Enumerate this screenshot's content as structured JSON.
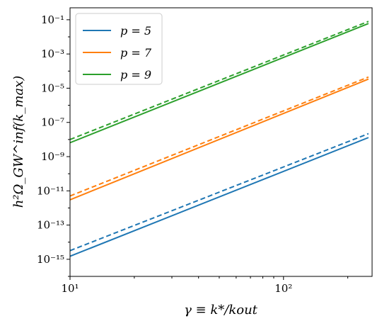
{
  "chart_data": {
    "type": "line",
    "xscale": "log",
    "yscale": "log",
    "xlim": [
      10,
      260
    ],
    "ylim": [
      1e-16,
      0.5
    ],
    "xlabel": "γ ≡ k*/kout",
    "ylabel": "h²Ω_GW^inf(k_max)",
    "x_ticks": [
      {
        "value": 10,
        "label": "10¹"
      },
      {
        "value": 100,
        "label": "10²"
      }
    ],
    "y_ticks": [
      {
        "value": 1e-15,
        "label": "10⁻¹⁵"
      },
      {
        "value": 1e-13,
        "label": "10⁻¹³"
      },
      {
        "value": 1e-11,
        "label": "10⁻¹¹"
      },
      {
        "value": 1e-09,
        "label": "10⁻⁹"
      },
      {
        "value": 1e-07,
        "label": "10⁻⁷"
      },
      {
        "value": 1e-05,
        "label": "10⁻⁵"
      },
      {
        "value": 0.001,
        "label": "10⁻³"
      },
      {
        "value": 0.1,
        "label": "10⁻¹"
      }
    ],
    "legend_position": "top-left",
    "grid": false,
    "series": [
      {
        "name": "p = 5",
        "color": "#1f77b4",
        "style": "solid",
        "x": [
          10,
          250
        ],
        "y": [
          1.5e-15,
          1.3e-08
        ]
      },
      {
        "name": "p = 7",
        "color": "#ff7f0e",
        "style": "solid",
        "x": [
          10,
          250
        ],
        "y": [
          3e-12,
          3.4e-05
        ]
      },
      {
        "name": "p = 9",
        "color": "#2ca02c",
        "style": "solid",
        "x": [
          10,
          250
        ],
        "y": [
          6.5e-09,
          0.06
        ]
      },
      {
        "color": "#1f77b4",
        "style": "dashed",
        "x": [
          10,
          250
        ],
        "y": [
          3.2e-15,
          2.2e-08
        ]
      },
      {
        "color": "#ff7f0e",
        "style": "dashed",
        "x": [
          10,
          250
        ],
        "y": [
          5e-12,
          4.5e-05
        ]
      },
      {
        "color": "#2ca02c",
        "style": "dashed",
        "x": [
          10,
          250
        ],
        "y": [
          1e-08,
          0.08
        ]
      }
    ]
  }
}
